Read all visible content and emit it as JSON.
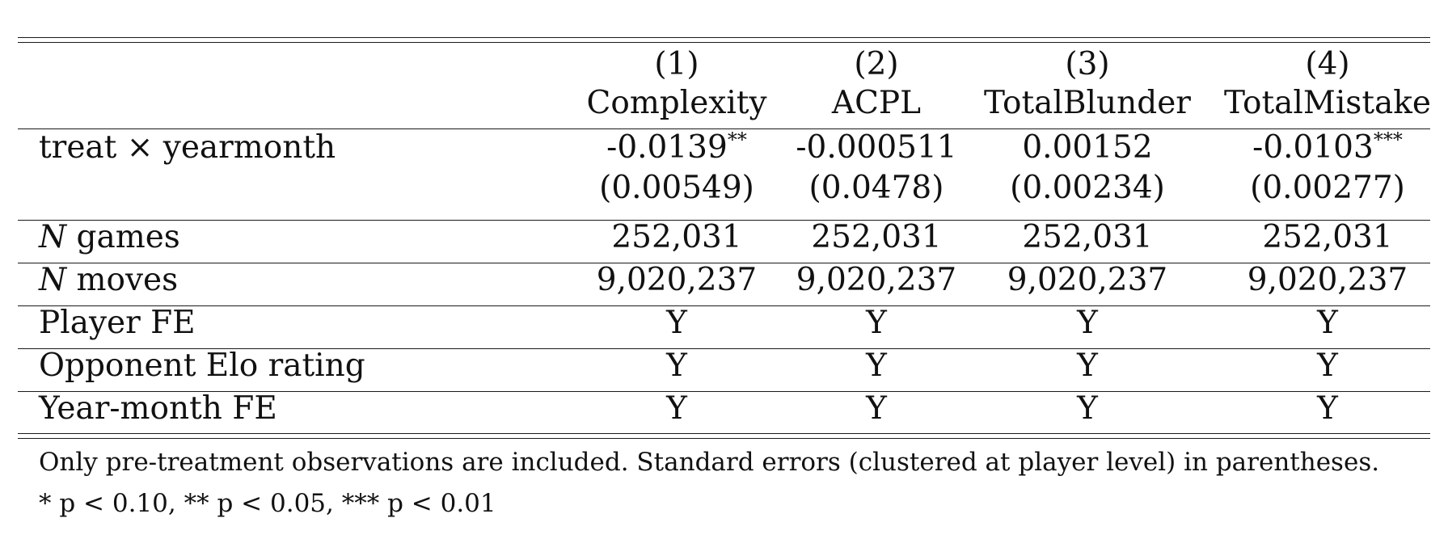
{
  "table": {
    "col_numbers": [
      "(1)",
      "(2)",
      "(3)",
      "(4)"
    ],
    "col_names": [
      "Complexity",
      "ACPL",
      "TotalBlunder",
      "TotalMistake"
    ],
    "treat_row": {
      "label": "treat × yearmonth",
      "coefs": [
        "-0.0139",
        "-0.000511",
        "0.00152",
        "-0.0103"
      ],
      "stars": [
        "**",
        "",
        "",
        "***"
      ],
      "ses": [
        "(0.00549)",
        "(0.0478)",
        "(0.00234)",
        "(0.00277)"
      ]
    },
    "rows": [
      {
        "label_italic": "N",
        "label_rest": " games",
        "values": [
          "252,031",
          "252,031",
          "252,031",
          "252,031"
        ]
      },
      {
        "label_italic": "N",
        "label_rest": " moves",
        "values": [
          "9,020,237",
          "9,020,237",
          "9,020,237",
          "9,020,237"
        ]
      },
      {
        "label_italic": "",
        "label_rest": "Player FE",
        "values": [
          "Y",
          "Y",
          "Y",
          "Y"
        ]
      },
      {
        "label_italic": "",
        "label_rest": "Opponent Elo rating",
        "values": [
          "Y",
          "Y",
          "Y",
          "Y"
        ]
      },
      {
        "label_italic": "",
        "label_rest": "Year-month FE",
        "values": [
          "Y",
          "Y",
          "Y",
          "Y"
        ]
      }
    ]
  },
  "notes": {
    "line1": "Only pre-treatment observations are included. Standard errors (clustered at player level) in parentheses.",
    "line2": "* p < 0.10, ** p < 0.05, *** p < 0.01"
  }
}
